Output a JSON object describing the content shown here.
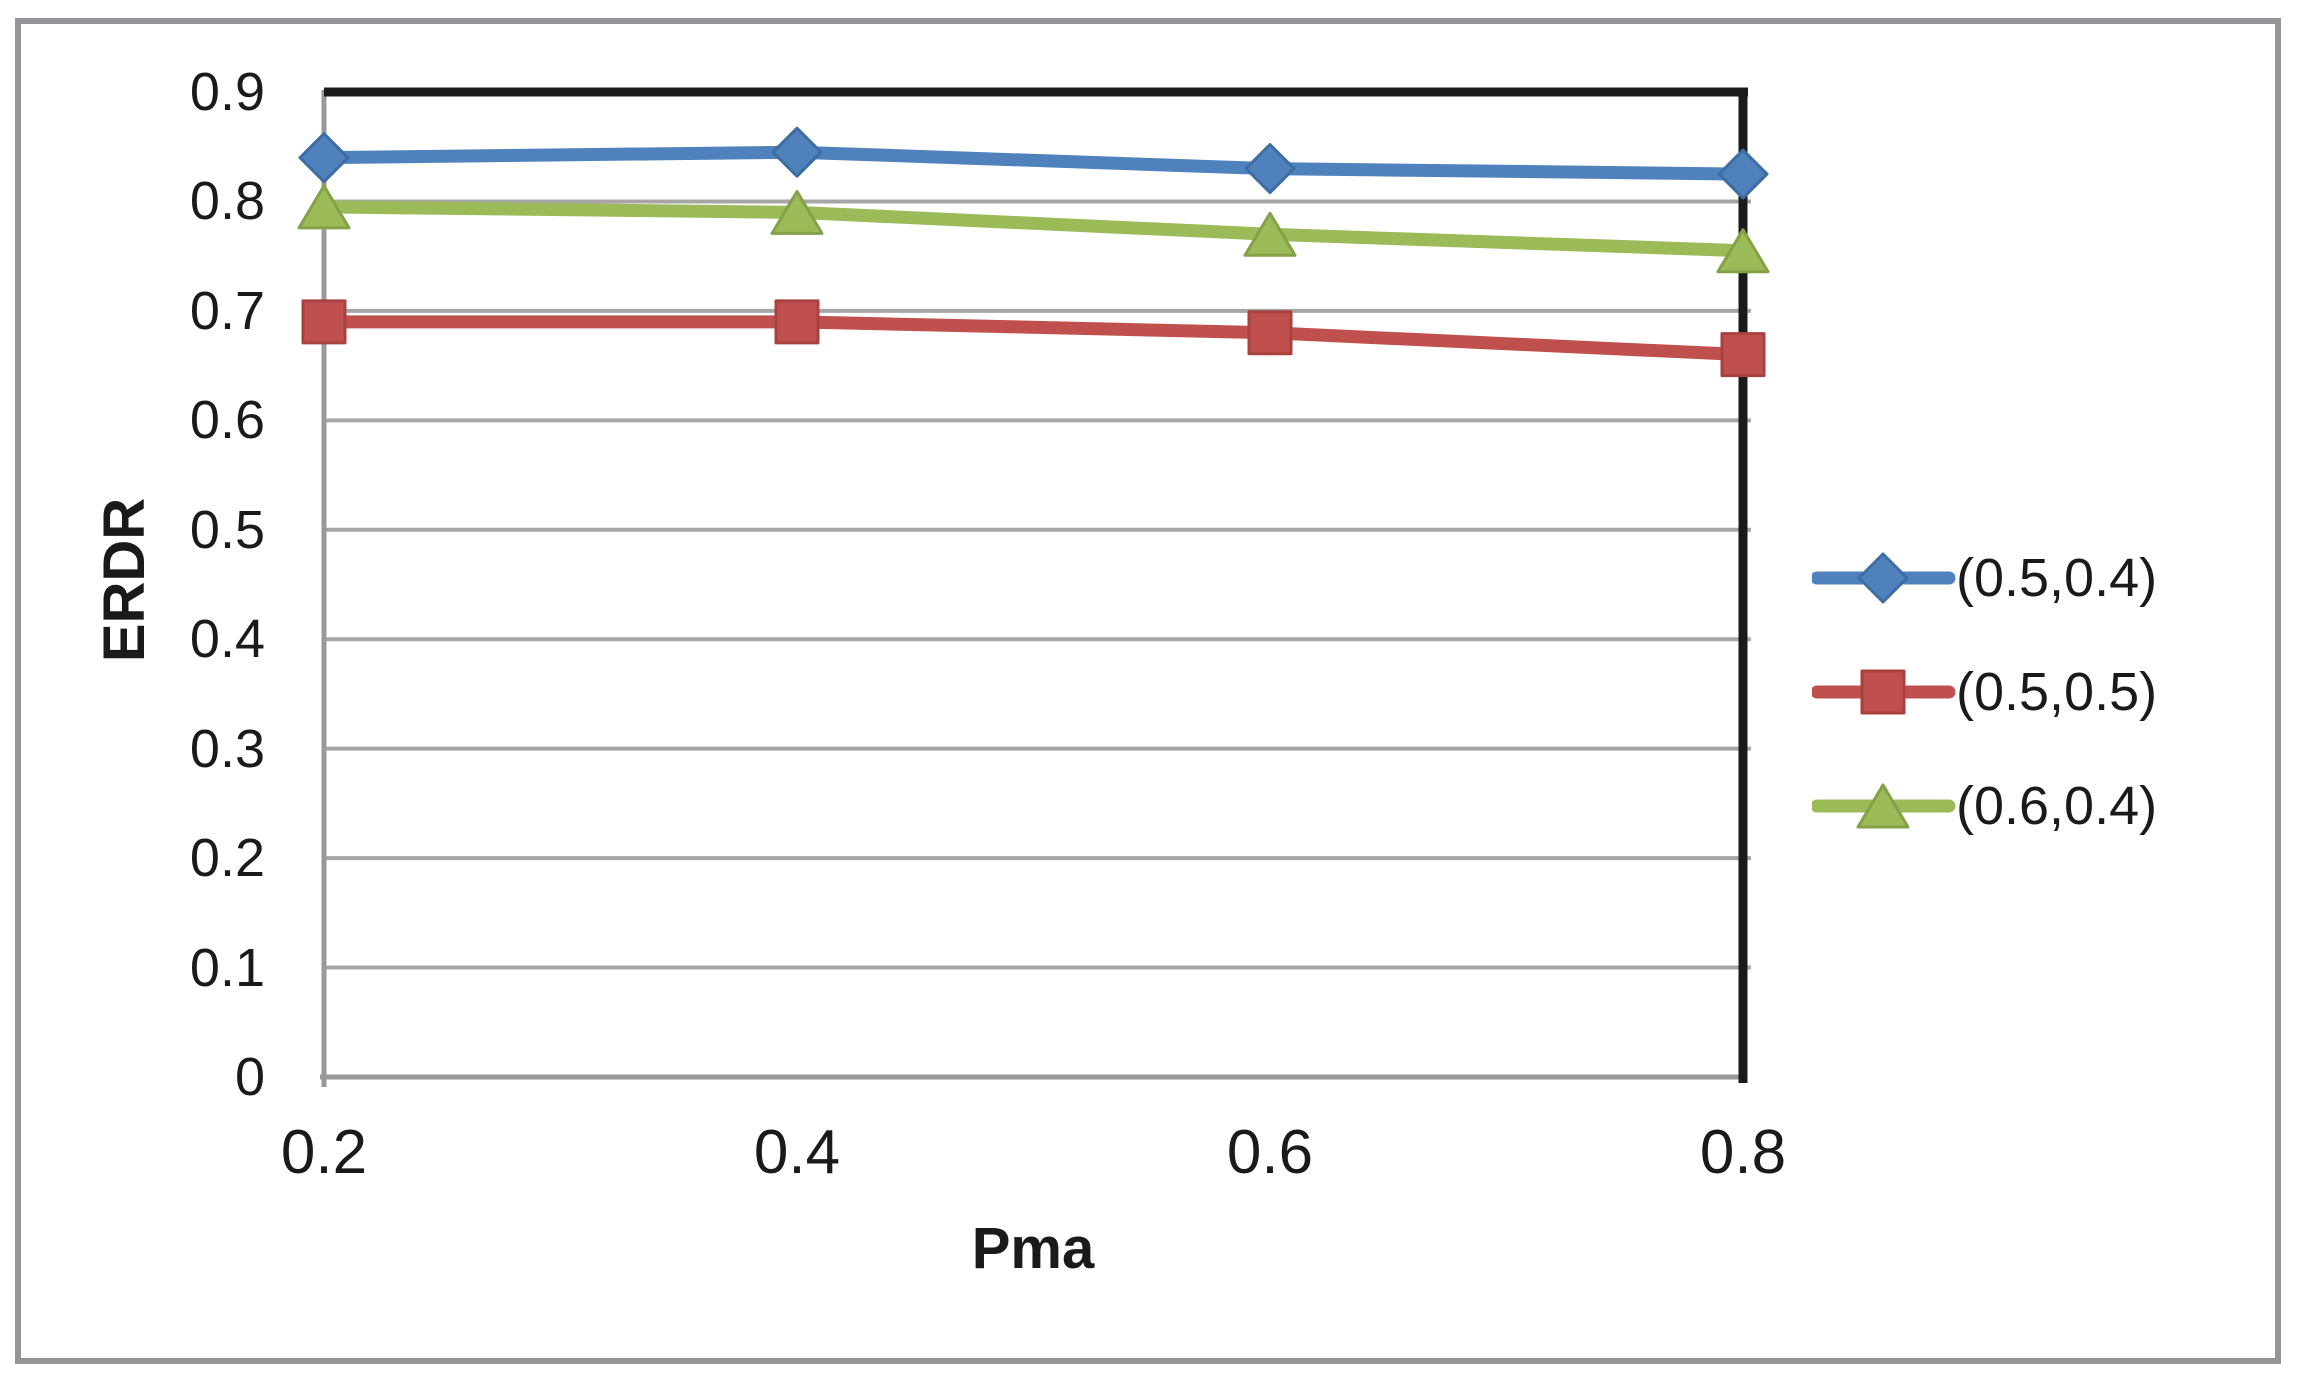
{
  "figure": {
    "background": "#ffffff",
    "border_color": "#939598"
  },
  "chart_data": {
    "type": "line",
    "title": "",
    "xlabel": "Pma",
    "ylabel": "ERDR",
    "x": [
      0.2,
      0.4,
      0.6,
      0.8
    ],
    "x_ticks": [
      "0.2",
      "0.4",
      "0.6",
      "0.8"
    ],
    "y_ticks": [
      "0",
      "0.1",
      "0.2",
      "0.3",
      "0.4",
      "0.5",
      "0.6",
      "0.7",
      "0.8",
      "0.9"
    ],
    "xlim": [
      0.2,
      0.8
    ],
    "ylim": [
      0,
      0.9
    ],
    "grid": true,
    "legend_position": "right",
    "series": [
      {
        "name": "(0.5,0.4)",
        "marker": "diamond",
        "color": "#4F81BD",
        "edge_color": "#3D6DA3",
        "values": [
          0.84,
          0.845,
          0.83,
          0.825
        ]
      },
      {
        "name": "(0.5,0.5)",
        "marker": "square",
        "color": "#C0504D",
        "edge_color": "#A8423F",
        "values": [
          0.69,
          0.69,
          0.68,
          0.66
        ]
      },
      {
        "name": "(0.6,0.4)",
        "marker": "triangle",
        "color": "#9BBB59",
        "edge_color": "#83A147",
        "values": [
          0.795,
          0.79,
          0.77,
          0.755
        ]
      }
    ],
    "colors": {
      "gridline": "#A6A6A6",
      "axis": "#999999",
      "plot_border": "#1A1A1A",
      "text": "#1A1A1A"
    }
  }
}
